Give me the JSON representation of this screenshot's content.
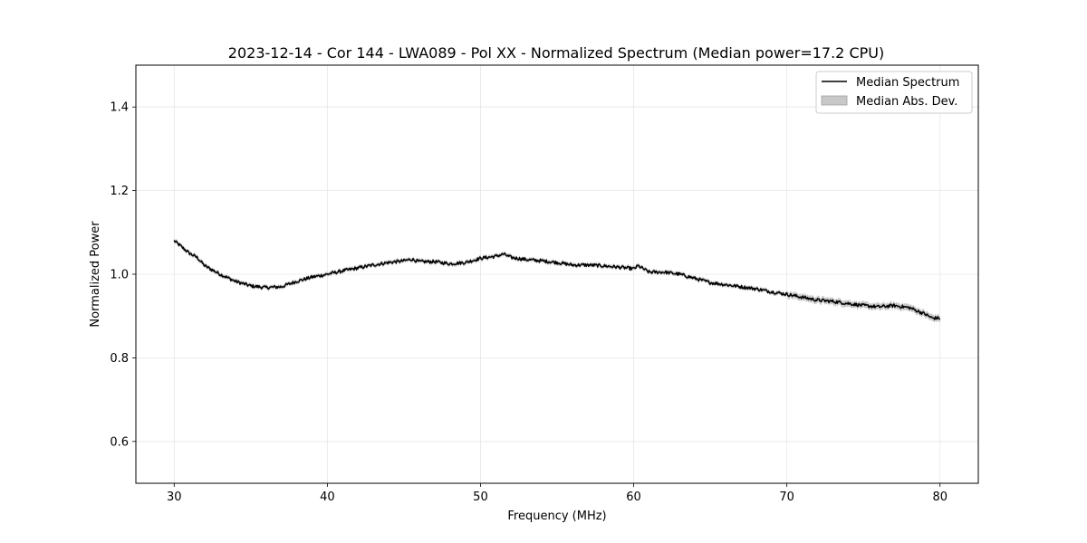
{
  "chart_data": {
    "type": "line",
    "title": "2023-12-14 - Cor 144 - LWA089 - Pol XX - Normalized Spectrum (Median power=17.2 CPU)",
    "xlabel": "Frequency (MHz)",
    "ylabel": "Normalized Power",
    "xlim": [
      27.5,
      82.5
    ],
    "ylim": [
      0.5,
      1.5
    ],
    "xticks": [
      30,
      40,
      50,
      60,
      70,
      80
    ],
    "yticks": [
      0.6,
      0.8,
      1.0,
      1.2,
      1.4
    ],
    "xtick_labels": [
      "30",
      "40",
      "50",
      "60",
      "70",
      "80"
    ],
    "ytick_labels": [
      "0.6",
      "0.8",
      "1.0",
      "1.2",
      "1.4"
    ],
    "grid": true,
    "legend_position": "top-right",
    "series": [
      {
        "name": "Median Spectrum",
        "color": "#000000",
        "x": [
          30,
          30.5,
          31,
          31.5,
          32,
          32.5,
          33,
          34,
          35,
          36,
          37,
          38,
          39,
          40,
          41,
          42,
          43,
          44,
          45,
          45.5,
          46,
          47,
          48,
          49,
          50,
          51,
          51.5,
          52,
          53,
          54,
          55,
          56,
          57,
          58,
          59,
          60,
          60.3,
          61,
          62,
          63,
          64,
          65,
          66,
          67,
          68,
          69,
          70,
          71,
          72,
          73,
          74,
          75,
          76,
          77,
          78,
          79,
          79.5,
          80
        ],
        "y": [
          1.08,
          1.065,
          1.05,
          1.04,
          1.02,
          1.01,
          1.0,
          0.983,
          0.972,
          0.968,
          0.97,
          0.983,
          0.993,
          1.0,
          1.008,
          1.015,
          1.022,
          1.028,
          1.032,
          1.036,
          1.03,
          1.03,
          1.025,
          1.028,
          1.038,
          1.043,
          1.048,
          1.04,
          1.035,
          1.032,
          1.028,
          1.022,
          1.022,
          1.02,
          1.017,
          1.013,
          1.02,
          1.005,
          1.005,
          1.0,
          0.99,
          0.98,
          0.975,
          0.97,
          0.965,
          0.958,
          0.952,
          0.945,
          0.938,
          0.935,
          0.93,
          0.925,
          0.922,
          0.925,
          0.92,
          0.905,
          0.895,
          0.895
        ]
      }
    ],
    "band": {
      "name": "Median Abs. Dev.",
      "color": "#c8c8c8",
      "half_width": 0.005
    }
  }
}
